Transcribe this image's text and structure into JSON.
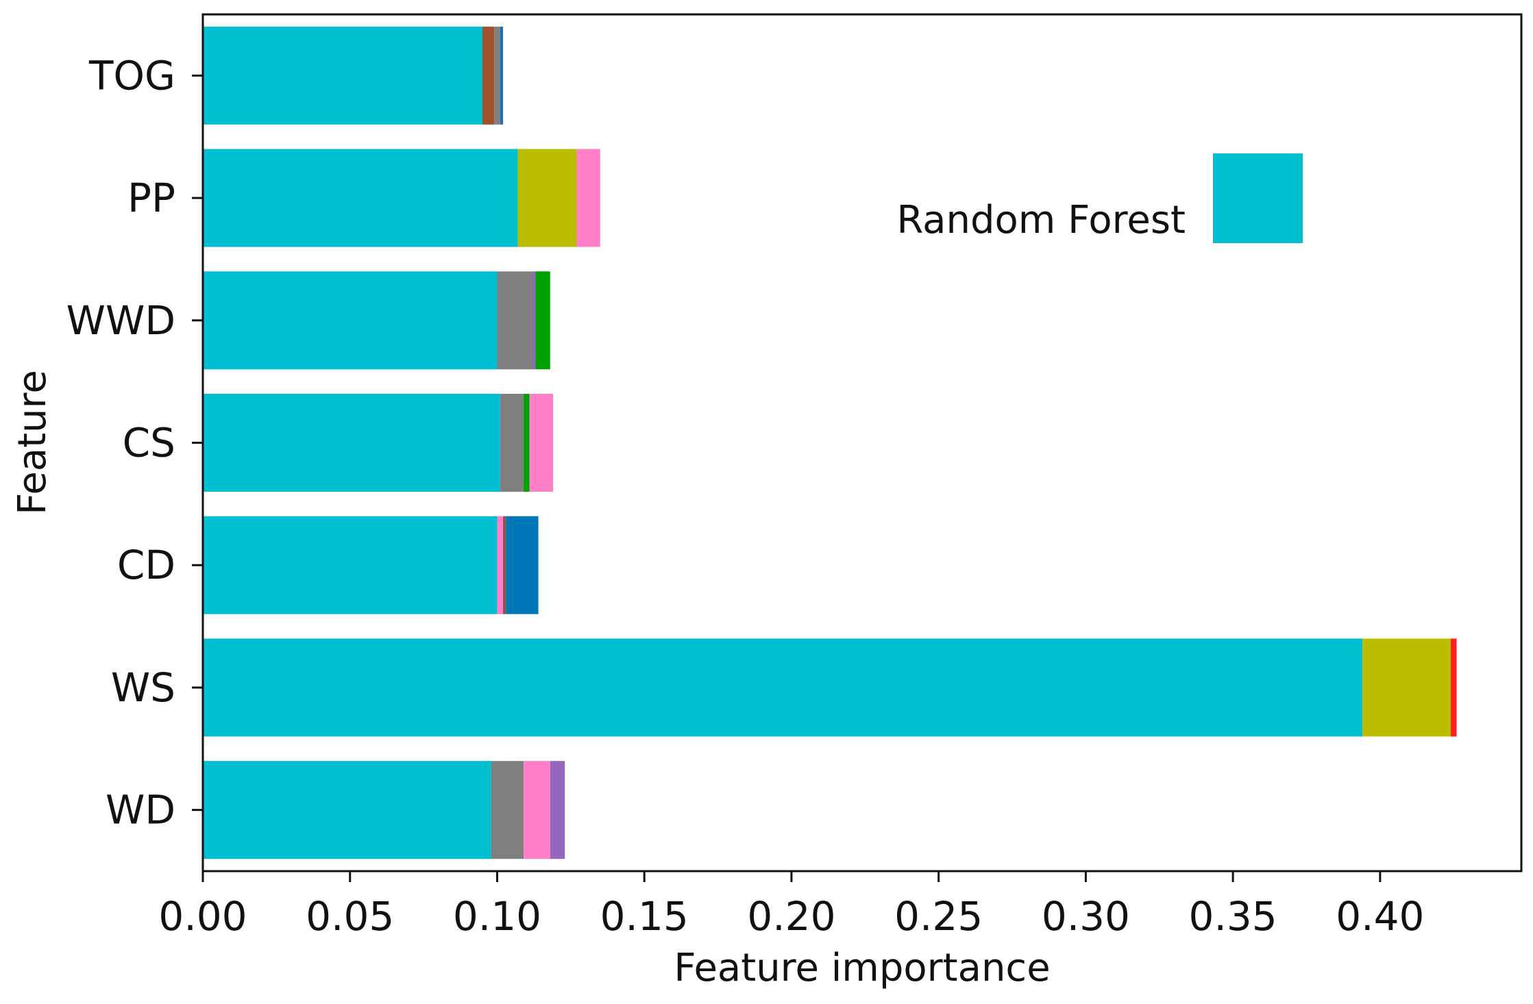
{
  "chart_data": {
    "type": "bar",
    "orientation": "horizontal",
    "stacked": true,
    "title": "",
    "xlabel": "Feature importance",
    "ylabel": "Feature",
    "xlim": [
      0,
      0.448
    ],
    "xticks": [
      "0.00",
      "0.05",
      "0.10",
      "0.15",
      "0.20",
      "0.25",
      "0.30",
      "0.35",
      "0.40"
    ],
    "categories": [
      "TOG",
      "PP",
      "WWD",
      "CS",
      "CD",
      "WS",
      "WD"
    ],
    "legend": {
      "label": "Random Forest",
      "color": "#00bfd0",
      "placement": "top-right"
    },
    "grid": false,
    "bars": [
      {
        "category": "TOG",
        "segments": [
          {
            "value": 0.095,
            "color": "#00bfd0"
          },
          {
            "value": 0.004,
            "color": "#a0522d"
          },
          {
            "value": 0.002,
            "color": "#7f7f7f"
          },
          {
            "value": 0.001,
            "color": "#1f6fb4"
          }
        ]
      },
      {
        "category": "PP",
        "segments": [
          {
            "value": 0.107,
            "color": "#00bfd0"
          },
          {
            "value": 0.02,
            "color": "#bcbd00"
          },
          {
            "value": 0.008,
            "color": "#ff7fc8"
          }
        ]
      },
      {
        "category": "WWD",
        "segments": [
          {
            "value": 0.1,
            "color": "#00bfd0"
          },
          {
            "value": 0.012,
            "color": "#7f7f7f"
          },
          {
            "value": 0.001,
            "color": "#9467bd"
          },
          {
            "value": 0.005,
            "color": "#00a000"
          }
        ]
      },
      {
        "category": "CS",
        "segments": [
          {
            "value": 0.101,
            "color": "#00bfd0"
          },
          {
            "value": 0.008,
            "color": "#7f7f7f"
          },
          {
            "value": 0.002,
            "color": "#00a000"
          },
          {
            "value": 0.008,
            "color": "#ff7fc8"
          }
        ]
      },
      {
        "category": "CD",
        "segments": [
          {
            "value": 0.1,
            "color": "#00bfd0"
          },
          {
            "value": 0.002,
            "color": "#ff7fc8"
          },
          {
            "value": 0.001,
            "color": "#8c564b"
          },
          {
            "value": 0.011,
            "color": "#0077b6"
          }
        ]
      },
      {
        "category": "WS",
        "segments": [
          {
            "value": 0.394,
            "color": "#00bfd0"
          },
          {
            "value": 0.03,
            "color": "#bcbd00"
          },
          {
            "value": 0.002,
            "color": "#ff2020"
          }
        ]
      },
      {
        "category": "WD",
        "segments": [
          {
            "value": 0.098,
            "color": "#00bfd0"
          },
          {
            "value": 0.011,
            "color": "#7f7f7f"
          },
          {
            "value": 0.009,
            "color": "#ff7fc8"
          },
          {
            "value": 0.005,
            "color": "#9467bd"
          }
        ]
      }
    ]
  }
}
